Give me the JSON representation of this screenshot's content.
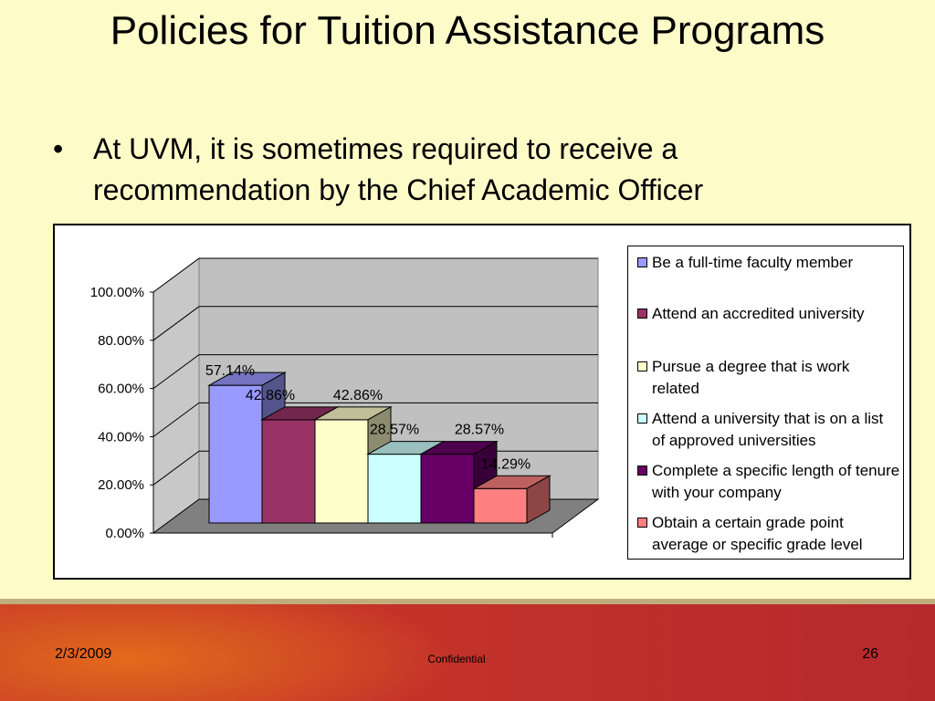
{
  "title": "Policies for Tuition Assistance Programs",
  "bullet": "At UVM, it is sometimes required to receive a recommendation by the Chief Academic Officer",
  "footer": {
    "date": "2/3/2009",
    "confidential": "Confidential",
    "page": "26"
  },
  "chart_data": {
    "type": "bar",
    "title": "",
    "xlabel": "",
    "ylabel": "",
    "ylim": [
      0,
      100
    ],
    "yticks": [
      "0.00%",
      "20.00%",
      "40.00%",
      "60.00%",
      "80.00%",
      "100.00%"
    ],
    "grid": true,
    "legend_position": "right",
    "series": [
      {
        "name": "Be a full-time faculty member",
        "value": 57.14,
        "label": "57.14%",
        "color": "#9999ff"
      },
      {
        "name": "Attend an accredited university",
        "value": 42.86,
        "label": "42.86%",
        "color": "#993366"
      },
      {
        "name": "Pursue a degree that is work related",
        "value": 42.86,
        "label": "42.86%",
        "color": "#ffffcc"
      },
      {
        "name": "Attend a university that is on a list of approved universities",
        "value": 28.57,
        "label": "28.57%",
        "color": "#ccffff"
      },
      {
        "name": "Complete a specific length of tenure with your company",
        "value": 28.57,
        "label": "28.57%",
        "color": "#660066"
      },
      {
        "name": "Obtain a certain grade point average or specific grade level",
        "value": 14.29,
        "label": "14.29%",
        "color": "#ff8080"
      }
    ]
  }
}
